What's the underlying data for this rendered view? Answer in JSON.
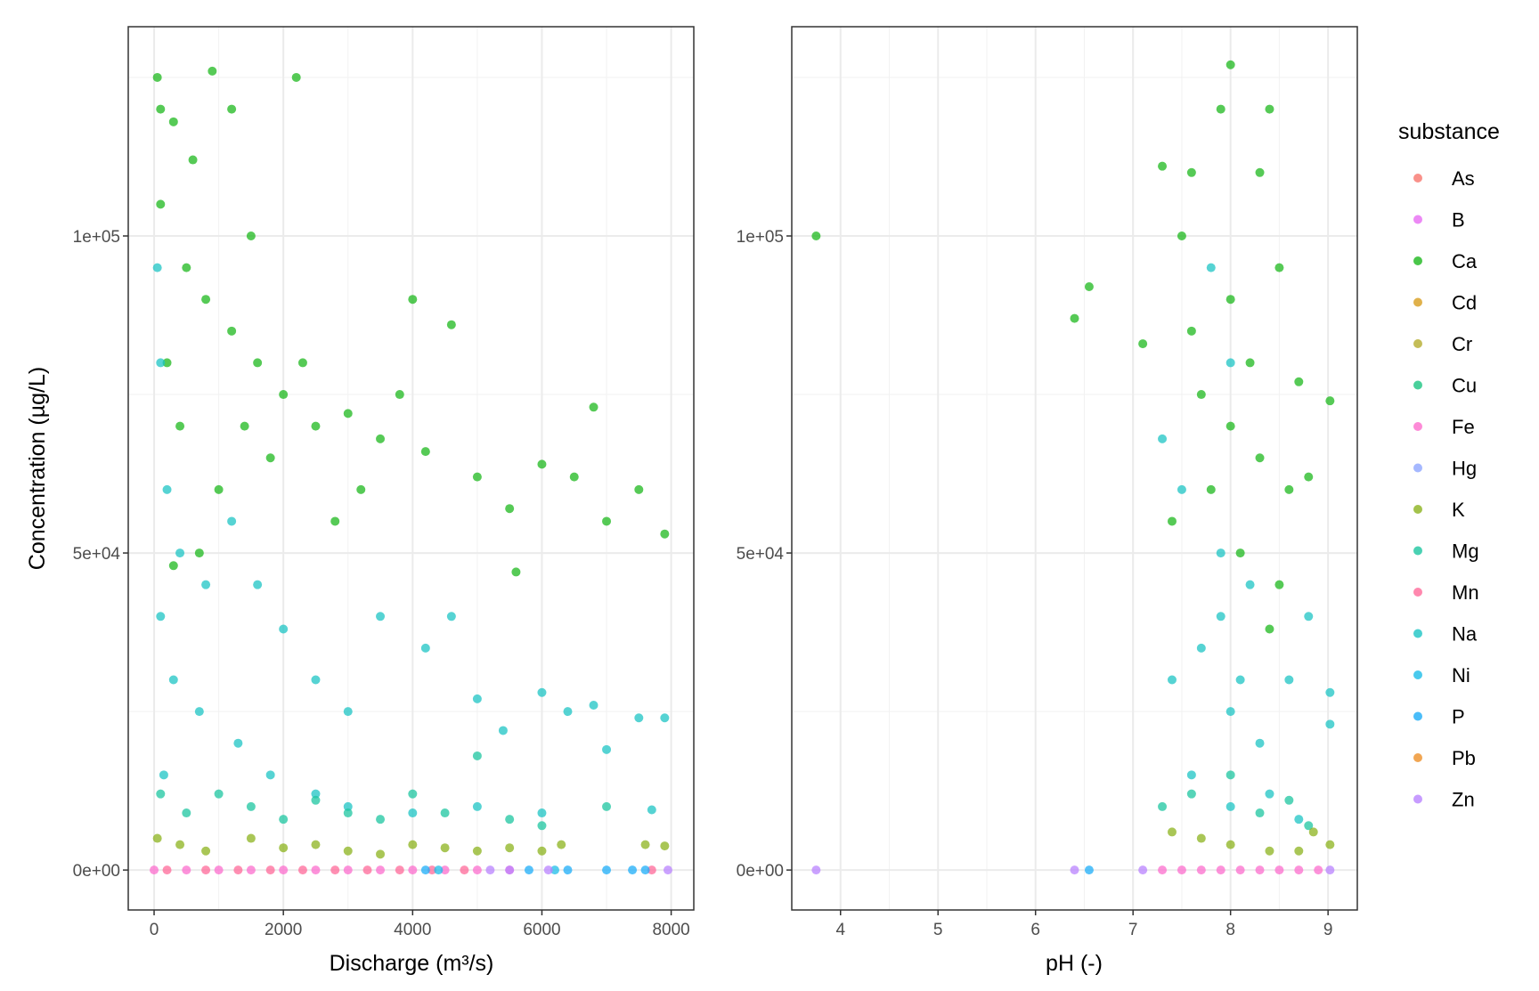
{
  "chart_data": [
    {
      "type": "scatter",
      "xlabel": "Discharge (m³/s)",
      "ylabel": "Concentration (µg/L)",
      "xlim": [
        -400,
        8350
      ],
      "ylim": [
        -6300,
        133000
      ],
      "xticks": [
        0,
        2000,
        4000,
        6000,
        8000
      ],
      "xtick_labels": [
        "0",
        "2000",
        "4000",
        "6000",
        "8000"
      ],
      "yticks": [
        0,
        50000,
        100000
      ],
      "ytick_labels": [
        "0e+00",
        "5e+04",
        "1e+05"
      ],
      "grid": true,
      "series": [
        {
          "name": "Ca",
          "points": [
            [
              50,
              125000
            ],
            [
              100,
              120000
            ],
            [
              300,
              118000
            ],
            [
              600,
              112000
            ],
            [
              900,
              126000
            ],
            [
              1200,
              120000
            ],
            [
              2200,
              125000
            ],
            [
              1500,
              100000
            ],
            [
              500,
              95000
            ],
            [
              800,
              90000
            ],
            [
              1200,
              85000
            ],
            [
              1600,
              80000
            ],
            [
              2000,
              75000
            ],
            [
              2500,
              70000
            ],
            [
              3000,
              72000
            ],
            [
              3500,
              68000
            ],
            [
              4000,
              90000
            ],
            [
              4600,
              86000
            ],
            [
              4200,
              66000
            ],
            [
              5000,
              62000
            ],
            [
              5500,
              57000
            ],
            [
              6000,
              64000
            ],
            [
              6500,
              62000
            ],
            [
              7000,
              55000
            ],
            [
              7500,
              60000
            ],
            [
              7900,
              53000
            ],
            [
              6800,
              73000
            ],
            [
              3200,
              60000
            ],
            [
              2800,
              55000
            ],
            [
              1000,
              60000
            ],
            [
              700,
              50000
            ],
            [
              300,
              48000
            ],
            [
              1800,
              65000
            ],
            [
              1400,
              70000
            ],
            [
              2300,
              80000
            ],
            [
              5600,
              47000
            ],
            [
              100,
              105000
            ],
            [
              200,
              80000
            ],
            [
              400,
              70000
            ],
            [
              3800,
              75000
            ]
          ]
        },
        {
          "name": "Na",
          "points": [
            [
              50,
              95000
            ],
            [
              100,
              80000
            ],
            [
              200,
              60000
            ],
            [
              400,
              50000
            ],
            [
              800,
              45000
            ],
            [
              1200,
              55000
            ],
            [
              1600,
              45000
            ],
            [
              2000,
              38000
            ],
            [
              2500,
              30000
            ],
            [
              3000,
              25000
            ],
            [
              3500,
              40000
            ],
            [
              4200,
              35000
            ],
            [
              4600,
              40000
            ],
            [
              5000,
              27000
            ],
            [
              5400,
              22000
            ],
            [
              6000,
              28000
            ],
            [
              6400,
              25000
            ],
            [
              6800,
              26000
            ],
            [
              7500,
              24000
            ],
            [
              7900,
              24000
            ],
            [
              7000,
              19000
            ],
            [
              700,
              25000
            ],
            [
              1300,
              20000
            ],
            [
              1800,
              15000
            ],
            [
              2500,
              12000
            ],
            [
              3000,
              10000
            ],
            [
              4000,
              9000
            ],
            [
              5000,
              10000
            ],
            [
              6000,
              9000
            ],
            [
              7700,
              9500
            ],
            [
              300,
              30000
            ],
            [
              150,
              15000
            ],
            [
              100,
              40000
            ]
          ]
        },
        {
          "name": "Mg",
          "points": [
            [
              100,
              12000
            ],
            [
              500,
              9000
            ],
            [
              1000,
              12000
            ],
            [
              1500,
              10000
            ],
            [
              2000,
              8000
            ],
            [
              2500,
              11000
            ],
            [
              3000,
              9000
            ],
            [
              3500,
              8000
            ],
            [
              4000,
              12000
            ],
            [
              4500,
              9000
            ],
            [
              5000,
              18000
            ],
            [
              5500,
              8000
            ],
            [
              6000,
              7000
            ],
            [
              7000,
              10000
            ]
          ]
        },
        {
          "name": "K",
          "points": [
            [
              50,
              5000
            ],
            [
              400,
              4000
            ],
            [
              800,
              3000
            ],
            [
              1500,
              5000
            ],
            [
              2000,
              3500
            ],
            [
              2500,
              4000
            ],
            [
              3000,
              3000
            ],
            [
              3500,
              2500
            ],
            [
              4000,
              4000
            ],
            [
              4500,
              3500
            ],
            [
              5000,
              3000
            ],
            [
              5500,
              3500
            ],
            [
              6000,
              3000
            ],
            [
              6300,
              4000
            ],
            [
              7600,
              4000
            ],
            [
              7900,
              3800
            ]
          ]
        },
        {
          "name": "Fe",
          "points": [
            [
              0,
              0
            ],
            [
              500,
              0
            ],
            [
              1000,
              0
            ],
            [
              1500,
              0
            ],
            [
              2000,
              0
            ],
            [
              2500,
              0
            ],
            [
              3000,
              0
            ],
            [
              3500,
              0
            ],
            [
              4000,
              0
            ],
            [
              4500,
              0
            ],
            [
              5000,
              0
            ],
            [
              5500,
              0
            ]
          ]
        },
        {
          "name": "Mn",
          "points": [
            [
              200,
              0
            ],
            [
              800,
              0
            ],
            [
              1300,
              0
            ],
            [
              1800,
              0
            ],
            [
              2300,
              0
            ],
            [
              2800,
              0
            ],
            [
              3300,
              0
            ],
            [
              3800,
              0
            ],
            [
              4300,
              0
            ],
            [
              4800,
              0
            ],
            [
              7700,
              0
            ]
          ]
        },
        {
          "name": "P",
          "points": [
            [
              4200,
              0
            ],
            [
              5800,
              0
            ],
            [
              6400,
              0
            ],
            [
              7000,
              0
            ],
            [
              7400,
              0
            ],
            [
              7600,
              0
            ]
          ]
        },
        {
          "name": "Ni",
          "points": [
            [
              4400,
              0
            ],
            [
              6200,
              0
            ]
          ]
        },
        {
          "name": "Zn",
          "points": [
            [
              5200,
              0
            ],
            [
              5500,
              0
            ],
            [
              6100,
              0
            ],
            [
              7950,
              0
            ]
          ]
        }
      ]
    },
    {
      "type": "scatter",
      "xlabel": "pH (-)",
      "ylabel": "",
      "xlim": [
        3.5,
        9.3
      ],
      "ylim": [
        -6300,
        133000
      ],
      "xticks": [
        4,
        5,
        6,
        7,
        8,
        9
      ],
      "xtick_labels": [
        "4",
        "5",
        "6",
        "7",
        "8",
        "9"
      ],
      "yticks": [
        0,
        50000,
        100000
      ],
      "ytick_labels": [
        "0e+00",
        "5e+04",
        "1e+05"
      ],
      "grid": true,
      "series": [
        {
          "name": "Ca",
          "points": [
            [
              3.75,
              100000
            ],
            [
              6.4,
              87000
            ],
            [
              6.55,
              92000
            ],
            [
              7.1,
              83000
            ],
            [
              7.3,
              111000
            ],
            [
              8.0,
              127000
            ],
            [
              7.9,
              120000
            ],
            [
              8.4,
              120000
            ],
            [
              7.6,
              110000
            ],
            [
              8.3,
              110000
            ],
            [
              7.5,
              100000
            ],
            [
              8.5,
              95000
            ],
            [
              7.6,
              85000
            ],
            [
              8.2,
              80000
            ],
            [
              8.0,
              70000
            ],
            [
              7.7,
              75000
            ],
            [
              8.3,
              65000
            ],
            [
              8.6,
              60000
            ],
            [
              8.8,
              62000
            ],
            [
              8.7,
              77000
            ],
            [
              9.02,
              74000
            ],
            [
              7.4,
              55000
            ],
            [
              8.5,
              45000
            ],
            [
              8.0,
              90000
            ],
            [
              7.8,
              60000
            ],
            [
              8.1,
              50000
            ],
            [
              8.4,
              38000
            ]
          ]
        },
        {
          "name": "Na",
          "points": [
            [
              7.3,
              68000
            ],
            [
              7.5,
              60000
            ],
            [
              7.8,
              95000
            ],
            [
              8.0,
              80000
            ],
            [
              7.9,
              50000
            ],
            [
              8.2,
              45000
            ],
            [
              7.7,
              35000
            ],
            [
              8.0,
              25000
            ],
            [
              8.3,
              20000
            ],
            [
              8.6,
              30000
            ],
            [
              8.8,
              40000
            ],
            [
              9.02,
              28000
            ],
            [
              9.02,
              23000
            ],
            [
              7.4,
              30000
            ],
            [
              7.6,
              15000
            ],
            [
              8.0,
              10000
            ],
            [
              8.4,
              12000
            ],
            [
              8.7,
              8000
            ],
            [
              7.9,
              40000
            ],
            [
              8.1,
              30000
            ]
          ]
        },
        {
          "name": "Mg",
          "points": [
            [
              7.3,
              10000
            ],
            [
              7.6,
              12000
            ],
            [
              8.0,
              15000
            ],
            [
              8.3,
              9000
            ],
            [
              8.6,
              11000
            ],
            [
              8.8,
              7000
            ]
          ]
        },
        {
          "name": "K",
          "points": [
            [
              7.4,
              6000
            ],
            [
              7.7,
              5000
            ],
            [
              8.0,
              4000
            ],
            [
              8.4,
              3000
            ],
            [
              8.7,
              3000
            ],
            [
              8.85,
              6000
            ],
            [
              9.02,
              4000
            ]
          ]
        },
        {
          "name": "Fe",
          "points": [
            [
              7.3,
              0
            ],
            [
              7.5,
              0
            ],
            [
              7.7,
              0
            ],
            [
              7.9,
              0
            ],
            [
              8.1,
              0
            ],
            [
              8.3,
              0
            ],
            [
              8.5,
              0
            ],
            [
              8.7,
              0
            ],
            [
              8.9,
              0
            ]
          ]
        },
        {
          "name": "P",
          "points": [
            [
              6.55,
              0
            ]
          ]
        },
        {
          "name": "Zn",
          "points": [
            [
              3.75,
              0
            ],
            [
              6.4,
              0
            ],
            [
              7.1,
              0
            ],
            [
              9.02,
              0
            ]
          ]
        }
      ]
    }
  ],
  "legend": {
    "title": "substance",
    "placement": "right",
    "items": [
      {
        "label": "As",
        "color": "#F8766D"
      },
      {
        "label": "B",
        "color": "#E76BF3"
      },
      {
        "label": "Ca",
        "color": "#1DB81D"
      },
      {
        "label": "Cd",
        "color": "#D89E1E"
      },
      {
        "label": "Cr",
        "color": "#B5AC2E"
      },
      {
        "label": "Cu",
        "color": "#1DC482"
      },
      {
        "label": "Fe",
        "color": "#FC6ECD"
      },
      {
        "label": "Hg",
        "color": "#8FA6FF"
      },
      {
        "label": "K",
        "color": "#8CB31E"
      },
      {
        "label": "Mg",
        "color": "#1DC6A0"
      },
      {
        "label": "Mn",
        "color": "#FF6A9A"
      },
      {
        "label": "Na",
        "color": "#1DC4C4"
      },
      {
        "label": "Ni",
        "color": "#1DBDE8"
      },
      {
        "label": "P",
        "color": "#1DADF8"
      },
      {
        "label": "Pb",
        "color": "#EE9028"
      },
      {
        "label": "Zn",
        "color": "#B983FF"
      }
    ]
  }
}
